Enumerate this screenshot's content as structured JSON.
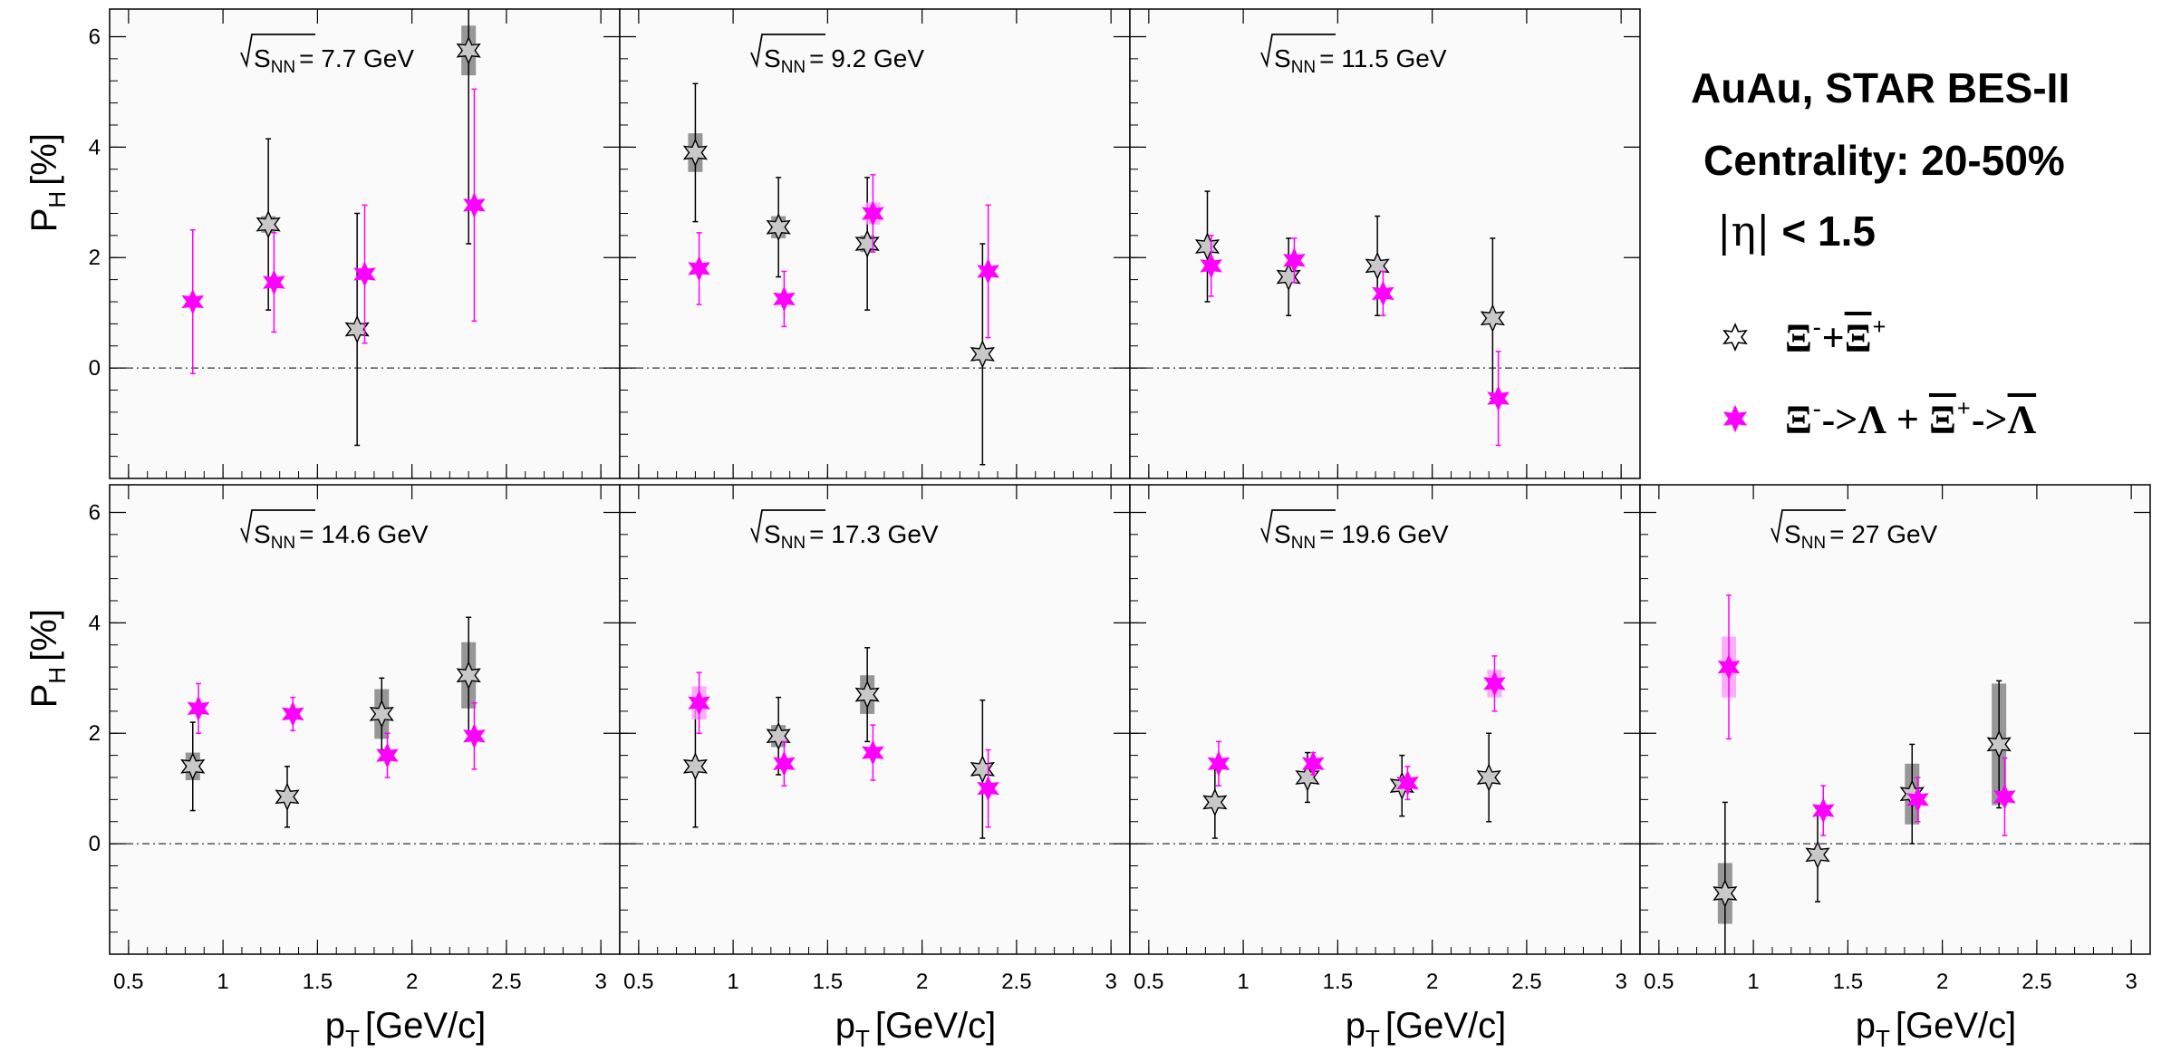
{
  "header": {
    "line1": "AuAu, STAR BES-II",
    "line2": "Centrality: 20-50%",
    "line3_sym": "|η|",
    "line3_val": "< 1.5"
  },
  "legend": {
    "entry1": {
      "xi": "Ξ",
      "minus": "-",
      "plus_op": "+",
      "xibar": "Ξ",
      "plus": "+"
    },
    "entry2": {
      "xi": "Ξ",
      "minus": "-",
      "arrow1": "->",
      "lambda": "Λ",
      "plus_op": "+",
      "xibar": "Ξ",
      "plus": "+",
      "arrow2": "->",
      "lambdabar": "Λ"
    }
  },
  "colors": {
    "xi_star": "#c8c8c8",
    "xi_lambda_star": "#ff00ff",
    "xi_syst": "#8c8c8c",
    "lambda_syst": "#ff99ff",
    "panel_bg": "#fafafa"
  },
  "chart_data": {
    "type": "scatter",
    "y_axis": {
      "label": "P",
      "label_sub": "H",
      "label_unit": "[%]",
      "range": [
        -2.0,
        6.5
      ],
      "tick_labels": [
        "0",
        "2",
        "4",
        "6"
      ]
    },
    "x_axis": {
      "label": "p",
      "label_sub": "T",
      "label_unit": "[GeV/c]",
      "range": [
        0.4,
        3.1
      ],
      "tick_labels": [
        "0.5",
        "1",
        "1.5",
        "2",
        "2.5",
        "3"
      ]
    },
    "energy_label_prefix": "S",
    "energy_label_sub": "NN",
    "series_names": [
      "Ξ- + Ξbar+",
      "Ξ- -> Λ + Ξbar+ -> Λbar"
    ],
    "panels": [
      {
        "energy": "= 7.7 GeV",
        "xi": [
          {
            "x": 1.24,
            "y": 2.6,
            "err": 1.55,
            "syst": 0.15
          },
          {
            "x": 1.71,
            "y": 0.7,
            "err": 2.1,
            "syst": 0.0
          },
          {
            "x": 2.3,
            "y": 5.75,
            "err": 3.5,
            "syst": 0.45
          }
        ],
        "xi_lambda": [
          {
            "x": 0.84,
            "y": 1.2,
            "err": 1.3,
            "syst": 0.0
          },
          {
            "x": 1.27,
            "y": 1.55,
            "err": 0.9,
            "syst": 0.0
          },
          {
            "x": 1.75,
            "y": 1.7,
            "err": 1.25,
            "syst": 0.0
          },
          {
            "x": 2.33,
            "y": 2.95,
            "err": 2.1,
            "syst": 0.0
          }
        ]
      },
      {
        "energy": "= 9.2 GeV",
        "xi": [
          {
            "x": 0.8,
            "y": 3.9,
            "err": 1.25,
            "syst": 0.35
          },
          {
            "x": 1.24,
            "y": 2.55,
            "err": 0.9,
            "syst": 0.2
          },
          {
            "x": 1.71,
            "y": 2.25,
            "err": 1.2,
            "syst": 0.15
          },
          {
            "x": 2.32,
            "y": 0.25,
            "err": 2.0,
            "syst": 0.0
          }
        ],
        "xi_lambda": [
          {
            "x": 0.82,
            "y": 1.8,
            "err": 0.65,
            "syst": 0.0
          },
          {
            "x": 1.27,
            "y": 1.25,
            "err": 0.5,
            "syst": 0.0
          },
          {
            "x": 1.74,
            "y": 2.8,
            "err": 0.7,
            "syst": 0.2
          },
          {
            "x": 2.35,
            "y": 1.75,
            "err": 1.2,
            "syst": 0.0
          }
        ]
      },
      {
        "energy": "= 11.5 GeV",
        "xi": [
          {
            "x": 0.81,
            "y": 2.2,
            "err": 1.0,
            "syst": 0.1
          },
          {
            "x": 1.24,
            "y": 1.65,
            "err": 0.7,
            "syst": 0.1
          },
          {
            "x": 1.71,
            "y": 1.85,
            "err": 0.9,
            "syst": 0.1
          },
          {
            "x": 2.32,
            "y": 0.9,
            "err": 1.45,
            "syst": 0.1
          }
        ],
        "xi_lambda": [
          {
            "x": 0.83,
            "y": 1.85,
            "err": 0.55,
            "syst": 0.0
          },
          {
            "x": 1.27,
            "y": 1.95,
            "err": 0.4,
            "syst": 0.0
          },
          {
            "x": 1.74,
            "y": 1.35,
            "err": 0.4,
            "syst": 0.0
          },
          {
            "x": 2.35,
            "y": -0.55,
            "err": 0.85,
            "syst": 0.0
          }
        ]
      },
      {
        "energy": "= 14.6 GeV",
        "xi": [
          {
            "x": 0.84,
            "y": 1.4,
            "err": 0.8,
            "syst": 0.25
          },
          {
            "x": 1.34,
            "y": 0.85,
            "err": 0.55,
            "syst": 0.0
          },
          {
            "x": 1.84,
            "y": 2.35,
            "err": 0.65,
            "syst": 0.45
          },
          {
            "x": 2.3,
            "y": 3.05,
            "err": 1.05,
            "syst": 0.6
          }
        ],
        "xi_lambda": [
          {
            "x": 0.87,
            "y": 2.45,
            "err": 0.45,
            "syst": 0.0
          },
          {
            "x": 1.37,
            "y": 2.35,
            "err": 0.3,
            "syst": 0.0
          },
          {
            "x": 1.87,
            "y": 1.6,
            "err": 0.4,
            "syst": 0.0
          },
          {
            "x": 2.33,
            "y": 1.95,
            "err": 0.6,
            "syst": 0.0
          }
        ]
      },
      {
        "energy": "= 17.3 GeV",
        "xi": [
          {
            "x": 0.8,
            "y": 1.4,
            "err": 1.1,
            "syst": 0.0
          },
          {
            "x": 1.24,
            "y": 1.95,
            "err": 0.7,
            "syst": 0.2
          },
          {
            "x": 1.71,
            "y": 2.7,
            "err": 0.85,
            "syst": 0.35
          },
          {
            "x": 2.32,
            "y": 1.35,
            "err": 1.25,
            "syst": 0.0
          }
        ],
        "xi_lambda": [
          {
            "x": 0.82,
            "y": 2.55,
            "err": 0.55,
            "syst": 0.3
          },
          {
            "x": 1.27,
            "y": 1.45,
            "err": 0.4,
            "syst": 0.0
          },
          {
            "x": 1.74,
            "y": 1.65,
            "err": 0.5,
            "syst": 0.0
          },
          {
            "x": 2.35,
            "y": 1.0,
            "err": 0.7,
            "syst": 0.0
          }
        ]
      },
      {
        "energy": "= 19.6 GeV",
        "xi": [
          {
            "x": 0.85,
            "y": 0.75,
            "err": 0.65,
            "syst": 0.0
          },
          {
            "x": 1.34,
            "y": 1.2,
            "err": 0.45,
            "syst": 0.0
          },
          {
            "x": 1.84,
            "y": 1.05,
            "err": 0.55,
            "syst": 0.0
          },
          {
            "x": 2.3,
            "y": 1.2,
            "err": 0.8,
            "syst": 0.0
          }
        ],
        "xi_lambda": [
          {
            "x": 0.87,
            "y": 1.45,
            "err": 0.4,
            "syst": 0.0
          },
          {
            "x": 1.37,
            "y": 1.45,
            "err": 0.2,
            "syst": 0.0
          },
          {
            "x": 1.87,
            "y": 1.1,
            "err": 0.3,
            "syst": 0.0
          },
          {
            "x": 2.33,
            "y": 2.9,
            "err": 0.5,
            "syst": 0.25
          }
        ]
      },
      {
        "energy": "= 27 GeV",
        "xi": [
          {
            "x": 0.85,
            "y": -0.9,
            "err": 1.65,
            "syst": 0.55
          },
          {
            "x": 1.34,
            "y": -0.2,
            "err": 0.85,
            "syst": 0.0
          },
          {
            "x": 1.84,
            "y": 0.9,
            "err": 0.9,
            "syst": 0.55
          },
          {
            "x": 2.3,
            "y": 1.8,
            "err": 1.15,
            "syst": 1.1
          }
        ],
        "xi_lambda": [
          {
            "x": 0.87,
            "y": 3.2,
            "err": 1.3,
            "syst": 0.55
          },
          {
            "x": 1.37,
            "y": 0.6,
            "err": 0.45,
            "syst": 0.0
          },
          {
            "x": 1.87,
            "y": 0.8,
            "err": 0.4,
            "syst": 0.0
          },
          {
            "x": 2.33,
            "y": 0.85,
            "err": 0.7,
            "syst": 0.0
          }
        ]
      }
    ]
  }
}
